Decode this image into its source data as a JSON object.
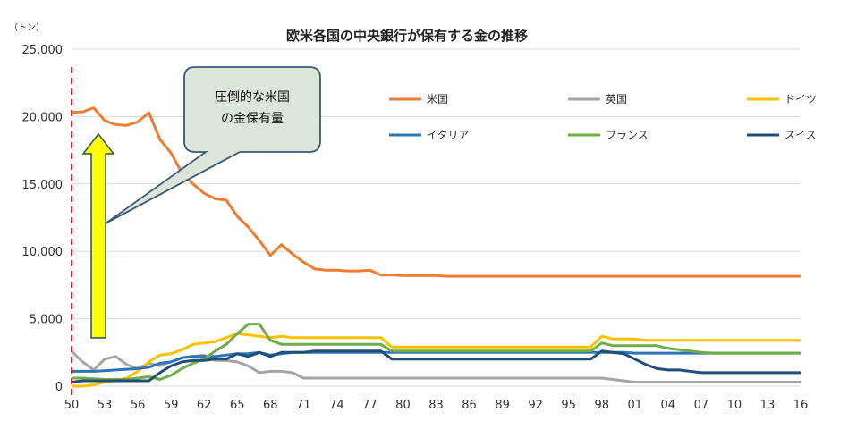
{
  "chart_data": {
    "type": "line",
    "title": "欧米各国の中央銀行が保有する金の推移",
    "unit_label": "（トン）",
    "ylim": [
      0,
      25000
    ],
    "y_ticks": [
      "0",
      "5,000",
      "10,000",
      "15,000",
      "20,000",
      "25,000"
    ],
    "y_tick_values": [
      0,
      5000,
      10000,
      15000,
      20000,
      25000
    ],
    "x_start": 1950,
    "x_end": 2016,
    "x_ticks": [
      "50",
      "53",
      "56",
      "59",
      "62",
      "65",
      "68",
      "71",
      "74",
      "77",
      "80",
      "83",
      "86",
      "89",
      "92",
      "95",
      "98",
      "01",
      "04",
      "07",
      "10",
      "13",
      "16"
    ],
    "annotation": {
      "text_lines": [
        "圧倒的な米国",
        "の金保有量"
      ]
    },
    "series": [
      {
        "name": "米国",
        "color": "#ED7D31",
        "values": [
          20300,
          20350,
          20650,
          19700,
          19400,
          19350,
          19600,
          20300,
          18300,
          17300,
          15800,
          15000,
          14300,
          13900,
          13800,
          12600,
          11800,
          10800,
          9700,
          10500,
          9800,
          9200,
          8700,
          8600,
          8600,
          8550,
          8550,
          8600,
          8250,
          8250,
          8200,
          8200,
          8200,
          8200,
          8150,
          8150,
          8150,
          8150,
          8150,
          8150,
          8150,
          8150,
          8150,
          8150,
          8150,
          8150,
          8150,
          8150,
          8150,
          8150,
          8150,
          8150,
          8150,
          8150,
          8150,
          8150,
          8150,
          8150,
          8150,
          8150,
          8150,
          8150,
          8150,
          8150,
          8150,
          8150,
          8150
        ]
      },
      {
        "name": "英国",
        "color": "#A5A5A5",
        "values": [
          2600,
          1800,
          1200,
          2000,
          2200,
          1600,
          1300,
          1700,
          1500,
          1800,
          2100,
          2200,
          2300,
          1900,
          1900,
          1800,
          1500,
          1000,
          1100,
          1100,
          1000,
          600,
          600,
          600,
          600,
          600,
          600,
          600,
          600,
          600,
          600,
          600,
          600,
          600,
          600,
          600,
          600,
          600,
          600,
          600,
          600,
          600,
          600,
          600,
          600,
          600,
          600,
          600,
          600,
          500,
          400,
          300,
          300,
          300,
          300,
          300,
          300,
          300,
          300,
          300,
          300,
          300,
          300,
          300,
          300,
          300,
          300
        ]
      },
      {
        "name": "ドイツ",
        "color": "#FFC000",
        "values": [
          0,
          0,
          100,
          300,
          400,
          600,
          1100,
          1800,
          2300,
          2400,
          2700,
          3100,
          3200,
          3300,
          3600,
          3900,
          3800,
          3700,
          3600,
          3700,
          3600,
          3600,
          3600,
          3600,
          3600,
          3600,
          3600,
          3600,
          3600,
          2900,
          2900,
          2900,
          2900,
          2900,
          2900,
          2900,
          2900,
          2900,
          2900,
          2900,
          2900,
          2900,
          2900,
          2900,
          2900,
          2900,
          2900,
          2900,
          3700,
          3500,
          3500,
          3500,
          3400,
          3400,
          3400,
          3400,
          3400,
          3400,
          3400,
          3400,
          3400,
          3400,
          3400,
          3400,
          3400,
          3400,
          3400
        ]
      },
      {
        "name": "イタリア",
        "color": "#2E75B6",
        "values": [
          1100,
          1100,
          1100,
          1150,
          1200,
          1250,
          1300,
          1400,
          1700,
          1800,
          2100,
          2200,
          2200,
          2200,
          2300,
          2400,
          2400,
          2500,
          2300,
          2400,
          2500,
          2500,
          2500,
          2500,
          2500,
          2500,
          2500,
          2500,
          2500,
          2500,
          2500,
          2500,
          2500,
          2500,
          2500,
          2500,
          2500,
          2500,
          2500,
          2500,
          2500,
          2500,
          2500,
          2500,
          2500,
          2500,
          2500,
          2500,
          2500,
          2500,
          2500,
          2450,
          2450,
          2450,
          2450,
          2450,
          2450,
          2450,
          2450,
          2450,
          2450,
          2450,
          2450,
          2450,
          2450,
          2450,
          2450
        ]
      },
      {
        "name": "フランス",
        "color": "#70AD47",
        "values": [
          600,
          600,
          550,
          500,
          500,
          500,
          600,
          700,
          500,
          800,
          1300,
          1700,
          2000,
          2600,
          3100,
          3900,
          4600,
          4600,
          3400,
          3100,
          3100,
          3100,
          3100,
          3100,
          3100,
          3100,
          3100,
          3100,
          3100,
          2600,
          2600,
          2600,
          2600,
          2600,
          2600,
          2600,
          2600,
          2600,
          2600,
          2600,
          2600,
          2600,
          2600,
          2600,
          2600,
          2600,
          2600,
          2600,
          3200,
          3000,
          3000,
          3000,
          3000,
          3000,
          2800,
          2700,
          2600,
          2500,
          2450,
          2450,
          2450,
          2450,
          2450,
          2450,
          2450,
          2450,
          2450
        ]
      },
      {
        "name": "スイス",
        "color": "#1F4E79",
        "values": [
          300,
          400,
          400,
          400,
          400,
          400,
          400,
          400,
          1000,
          1500,
          1800,
          1900,
          1900,
          2000,
          2000,
          2400,
          2200,
          2500,
          2200,
          2500,
          2500,
          2500,
          2600,
          2600,
          2600,
          2600,
          2600,
          2600,
          2600,
          2000,
          2000,
          2000,
          2000,
          2000,
          2000,
          2000,
          2000,
          2000,
          2000,
          2000,
          2000,
          2000,
          2000,
          2000,
          2000,
          2000,
          2000,
          2000,
          2600,
          2500,
          2400,
          2000,
          1600,
          1300,
          1200,
          1200,
          1100,
          1000,
          1000,
          1000,
          1000,
          1000,
          1000,
          1000,
          1000,
          1000,
          1000
        ]
      }
    ]
  }
}
